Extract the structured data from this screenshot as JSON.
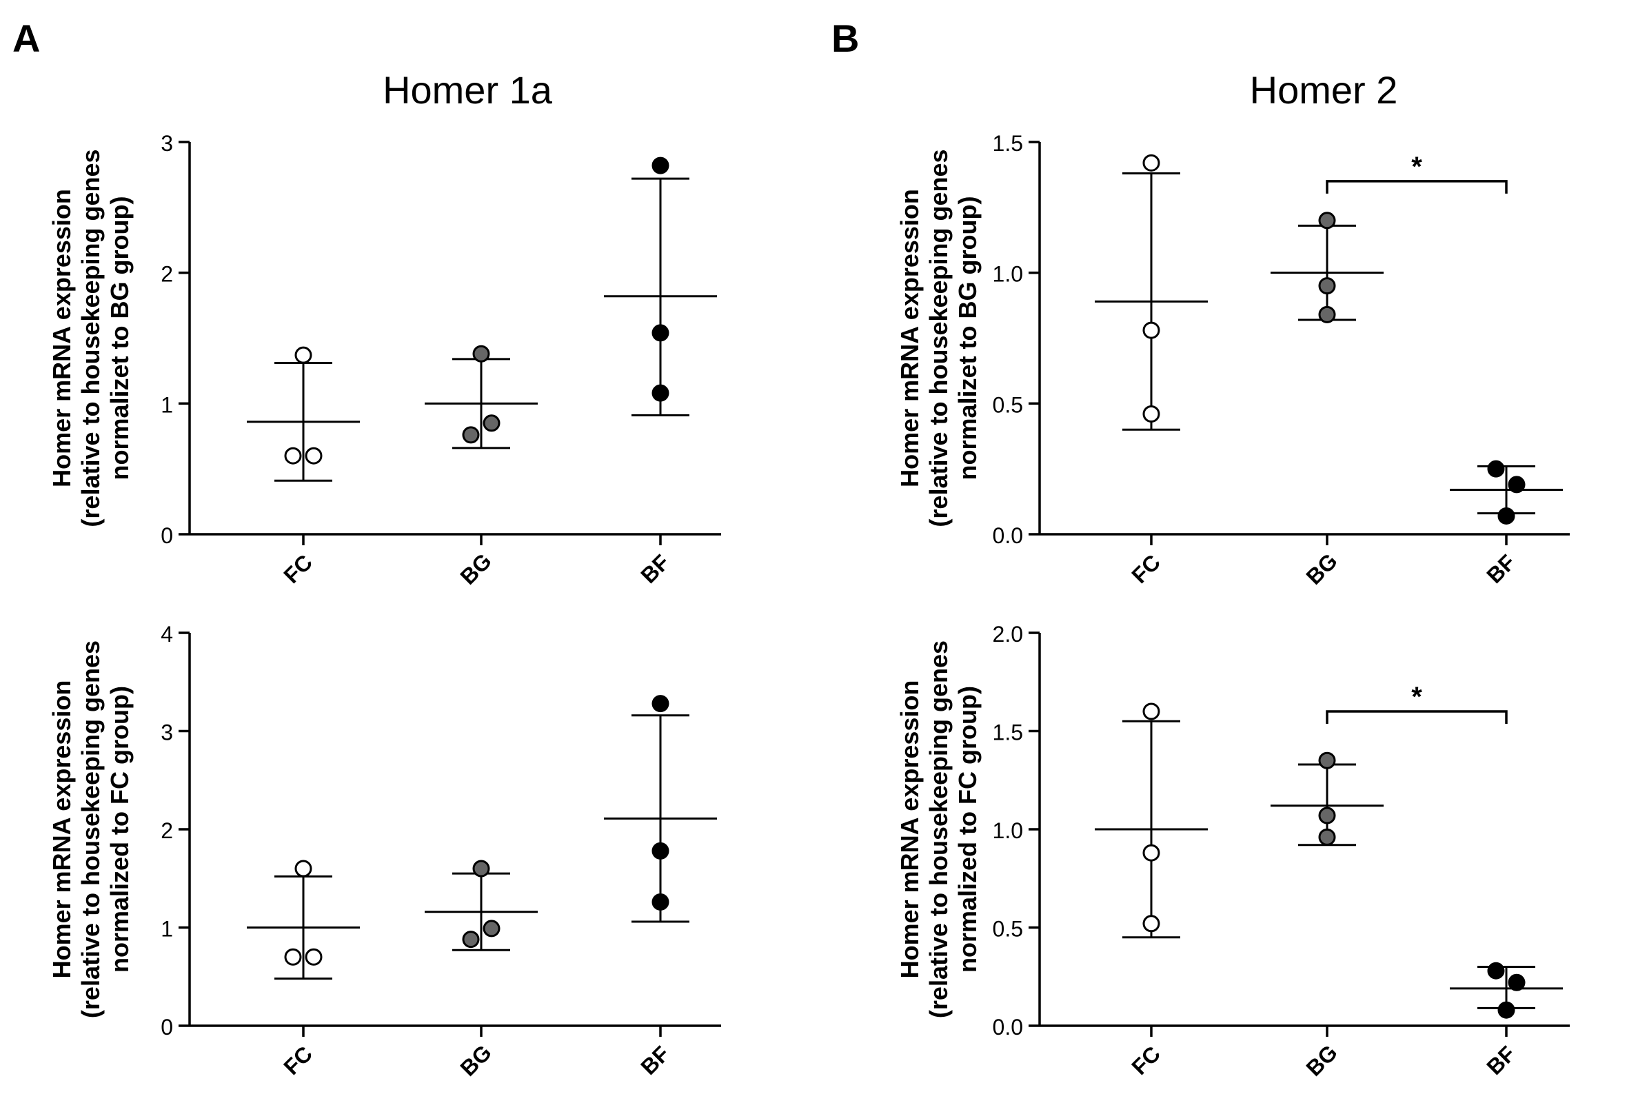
{
  "panels": [
    {
      "label": "A",
      "title": "Homer 1a"
    },
    {
      "label": "B",
      "title": "Homer 2"
    }
  ],
  "chart_data": [
    {
      "type": "scatter",
      "panel": "A",
      "title": "Homer 1a",
      "ylabel_lines": [
        "Homer mRNA expression",
        "(relative to housekeeping genes",
        "normalizet to BG group)"
      ],
      "categories": [
        "FC",
        "BG",
        "BF"
      ],
      "ylim": [
        0,
        3
      ],
      "yticks": [
        0,
        1,
        2,
        3
      ],
      "ytick_labels": [
        "0",
        "1",
        "2",
        "3"
      ],
      "groups": [
        {
          "name": "FC",
          "fill": "#ffffff",
          "points": [
            [
              -0.1,
              0.6
            ],
            [
              0.1,
              0.6
            ],
            [
              0,
              1.37
            ]
          ],
          "mean": 0.86,
          "sd_low": 0.41,
          "sd_high": 1.31
        },
        {
          "name": "BG",
          "fill": "#666666",
          "points": [
            [
              -0.1,
              0.76
            ],
            [
              0.1,
              0.85
            ],
            [
              0,
              1.38
            ]
          ],
          "mean": 1.0,
          "sd_low": 0.66,
          "sd_high": 1.34
        },
        {
          "name": "BF",
          "fill": "#000000",
          "points": [
            [
              0,
              1.08
            ],
            [
              0,
              1.54
            ],
            [
              0,
              2.82
            ]
          ],
          "mean": 1.82,
          "sd_low": 0.91,
          "sd_high": 2.72
        }
      ],
      "significance": []
    },
    {
      "type": "scatter",
      "panel": "B",
      "title": "Homer 2",
      "ylabel_lines": [
        "Homer mRNA expression",
        "(relative to housekeeping genes",
        "normalizet to BG group)"
      ],
      "categories": [
        "FC",
        "BG",
        "BF"
      ],
      "ylim": [
        0,
        1.5
      ],
      "yticks": [
        0,
        0.5,
        1.0,
        1.5
      ],
      "ytick_labels": [
        "0.0",
        "0.5",
        "1.0",
        "1.5"
      ],
      "groups": [
        {
          "name": "FC",
          "fill": "#ffffff",
          "points": [
            [
              0,
              0.46
            ],
            [
              0,
              0.78
            ],
            [
              0,
              1.42
            ]
          ],
          "mean": 0.89,
          "sd_low": 0.4,
          "sd_high": 1.38
        },
        {
          "name": "BG",
          "fill": "#666666",
          "points": [
            [
              0,
              0.84
            ],
            [
              0,
              0.95
            ],
            [
              0,
              1.2
            ]
          ],
          "mean": 1.0,
          "sd_low": 0.82,
          "sd_high": 1.18
        },
        {
          "name": "BF",
          "fill": "#000000",
          "points": [
            [
              -0.1,
              0.25
            ],
            [
              0.1,
              0.19
            ],
            [
              0,
              0.07
            ]
          ],
          "mean": 0.17,
          "sd_low": 0.08,
          "sd_high": 0.26
        }
      ],
      "significance": [
        {
          "from": "BG",
          "to": "BF",
          "y": 1.35,
          "label": "*"
        }
      ]
    },
    {
      "type": "scatter",
      "panel": "A",
      "title": "",
      "ylabel_lines": [
        "Homer mRNA expression",
        "(relative to housekeeping genes",
        "normalized to FC group)"
      ],
      "categories": [
        "FC",
        "BG",
        "BF"
      ],
      "ylim": [
        0,
        4
      ],
      "yticks": [
        0,
        1,
        2,
        3,
        4
      ],
      "ytick_labels": [
        "0",
        "1",
        "2",
        "3",
        "4"
      ],
      "groups": [
        {
          "name": "FC",
          "fill": "#ffffff",
          "points": [
            [
              -0.1,
              0.7
            ],
            [
              0.1,
              0.7
            ],
            [
              0,
              1.6
            ]
          ],
          "mean": 1.0,
          "sd_low": 0.48,
          "sd_high": 1.52
        },
        {
          "name": "BG",
          "fill": "#666666",
          "points": [
            [
              -0.1,
              0.88
            ],
            [
              0.1,
              0.99
            ],
            [
              0,
              1.6
            ]
          ],
          "mean": 1.16,
          "sd_low": 0.77,
          "sd_high": 1.55
        },
        {
          "name": "BF",
          "fill": "#000000",
          "points": [
            [
              0,
              1.26
            ],
            [
              0,
              1.78
            ],
            [
              0,
              3.28
            ]
          ],
          "mean": 2.11,
          "sd_low": 1.06,
          "sd_high": 3.16
        }
      ],
      "significance": []
    },
    {
      "type": "scatter",
      "panel": "B",
      "title": "",
      "ylabel_lines": [
        "Homer mRNA expression",
        "(relative to housekeeping genes",
        "normalized to FC group)"
      ],
      "categories": [
        "FC",
        "BG",
        "BF"
      ],
      "ylim": [
        0,
        2.0
      ],
      "yticks": [
        0,
        0.5,
        1.0,
        1.5,
        2.0
      ],
      "ytick_labels": [
        "0.0",
        "0.5",
        "1.0",
        "1.5",
        "2.0"
      ],
      "groups": [
        {
          "name": "FC",
          "fill": "#ffffff",
          "points": [
            [
              0,
              0.52
            ],
            [
              0,
              0.88
            ],
            [
              0,
              1.6
            ]
          ],
          "mean": 1.0,
          "sd_low": 0.45,
          "sd_high": 1.55
        },
        {
          "name": "BG",
          "fill": "#666666",
          "points": [
            [
              0,
              0.96
            ],
            [
              0,
              1.07
            ],
            [
              0,
              1.35
            ]
          ],
          "mean": 1.12,
          "sd_low": 0.92,
          "sd_high": 1.33
        },
        {
          "name": "BF",
          "fill": "#000000",
          "points": [
            [
              -0.1,
              0.28
            ],
            [
              0.1,
              0.22
            ],
            [
              0,
              0.08
            ]
          ],
          "mean": 0.19,
          "sd_low": 0.09,
          "sd_high": 0.3
        }
      ],
      "significance": [
        {
          "from": "BG",
          "to": "BF",
          "y": 1.6,
          "label": "*"
        }
      ]
    }
  ]
}
